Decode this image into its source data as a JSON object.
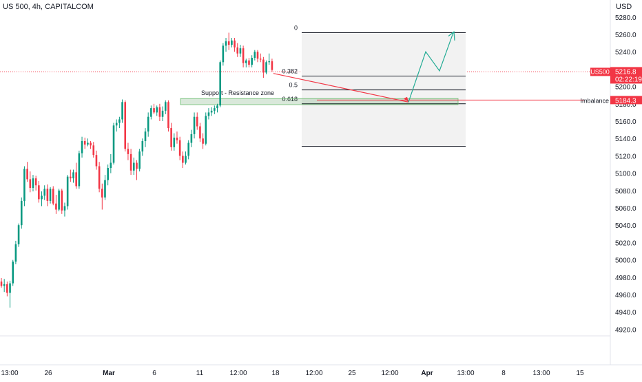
{
  "header": {
    "symbol_title": "US 500, 4h, CAPITALCOM",
    "currency": "USD"
  },
  "chart_data": {
    "type": "candlestick",
    "title": "US 500, 4h, CAPITALCOM",
    "ylim": [
      4910,
      5290
    ],
    "y_ticks": [
      4920,
      4940,
      4960,
      4980,
      5000,
      5020,
      5040,
      5060,
      5080,
      5100,
      5120,
      5140,
      5160,
      5180,
      5200,
      5220,
      5240,
      5260,
      5280
    ],
    "y_tick_labels": [
      "4920.0",
      "4940.0",
      "4960.0",
      "4980.0",
      "5000.0",
      "5020.0",
      "5040.0",
      "5060.0",
      "5080.0",
      "5100.0",
      "5120.0",
      "5140.0",
      "5160.0",
      "5180.0",
      "5200.0",
      "5220.0",
      "5240.0",
      "5260.0",
      "5280.0"
    ],
    "x_tick_labels": [
      "13:00",
      "26",
      "Mar",
      "6",
      "11",
      "12:00",
      "18",
      "12:00",
      "25",
      "12:00",
      "Apr",
      "13:00",
      "8",
      "13:00",
      "15"
    ],
    "candles": [
      [
        4975,
        4979,
        4968,
        4970
      ],
      [
        4970,
        4978,
        4963,
        4972
      ],
      [
        4972,
        4975,
        4958,
        4962
      ],
      [
        4962,
        4976,
        4945,
        4973
      ],
      [
        4973,
        5000,
        4970,
        4998
      ],
      [
        4998,
        5022,
        4995,
        5018
      ],
      [
        5018,
        5042,
        5015,
        5040
      ],
      [
        5040,
        5072,
        5036,
        5068
      ],
      [
        5068,
        5108,
        5062,
        5105
      ],
      [
        5105,
        5113,
        5090,
        5093
      ],
      [
        5093,
        5102,
        5078,
        5083
      ],
      [
        5083,
        5098,
        5079,
        5094
      ],
      [
        5094,
        5097,
        5080,
        5086
      ],
      [
        5086,
        5091,
        5066,
        5070
      ],
      [
        5070,
        5079,
        5062,
        5074
      ],
      [
        5074,
        5086,
        5069,
        5082
      ],
      [
        5082,
        5087,
        5062,
        5068
      ],
      [
        5068,
        5084,
        5065,
        5082
      ],
      [
        5082,
        5085,
        5063,
        5065
      ],
      [
        5065,
        5075,
        5053,
        5058
      ],
      [
        5058,
        5082,
        5056,
        5080
      ],
      [
        5080,
        5082,
        5053,
        5057
      ],
      [
        5057,
        5066,
        5050,
        5062
      ],
      [
        5062,
        5098,
        5058,
        5096
      ],
      [
        5096,
        5104,
        5090,
        5094
      ],
      [
        5094,
        5104,
        5089,
        5101
      ],
      [
        5101,
        5112,
        5082,
        5085
      ],
      [
        5085,
        5126,
        5082,
        5123
      ],
      [
        5123,
        5142,
        5118,
        5137
      ],
      [
        5137,
        5141,
        5128,
        5133
      ],
      [
        5133,
        5140,
        5131,
        5135
      ],
      [
        5135,
        5137,
        5128,
        5132
      ],
      [
        5132,
        5136,
        5118,
        5121
      ],
      [
        5121,
        5126,
        5104,
        5108
      ],
      [
        5108,
        5113,
        5078,
        5082
      ],
      [
        5082,
        5088,
        5058,
        5072
      ],
      [
        5072,
        5098,
        5069,
        5092
      ],
      [
        5092,
        5110,
        5086,
        5106
      ],
      [
        5106,
        5122,
        5100,
        5112
      ],
      [
        5112,
        5158,
        5110,
        5155
      ],
      [
        5155,
        5162,
        5148,
        5158
      ],
      [
        5158,
        5165,
        5152,
        5162
      ],
      [
        5162,
        5185,
        5158,
        5182
      ],
      [
        5182,
        5184,
        5125,
        5128
      ],
      [
        5128,
        5135,
        5115,
        5122
      ],
      [
        5122,
        5128,
        5098,
        5103
      ],
      [
        5103,
        5118,
        5098,
        5112
      ],
      [
        5112,
        5115,
        5092,
        5105
      ],
      [
        5105,
        5128,
        5102,
        5125
      ],
      [
        5125,
        5140,
        5120,
        5137
      ],
      [
        5137,
        5152,
        5130,
        5148
      ],
      [
        5148,
        5170,
        5142,
        5165
      ],
      [
        5165,
        5178,
        5162,
        5175
      ],
      [
        5175,
        5180,
        5168,
        5170
      ],
      [
        5170,
        5178,
        5166,
        5176
      ],
      [
        5176,
        5180,
        5160,
        5165
      ],
      [
        5165,
        5177,
        5160,
        5172
      ],
      [
        5172,
        5184,
        5168,
        5182
      ],
      [
        5182,
        5184,
        5148,
        5152
      ],
      [
        5152,
        5158,
        5126,
        5130
      ],
      [
        5130,
        5146,
        5126,
        5141
      ],
      [
        5141,
        5148,
        5134,
        5138
      ],
      [
        5138,
        5142,
        5115,
        5120
      ],
      [
        5120,
        5125,
        5106,
        5112
      ],
      [
        5112,
        5125,
        5110,
        5120
      ],
      [
        5120,
        5138,
        5116,
        5135
      ],
      [
        5135,
        5150,
        5130,
        5145
      ],
      [
        5145,
        5170,
        5140,
        5165
      ],
      [
        5165,
        5170,
        5150,
        5154
      ],
      [
        5154,
        5158,
        5136,
        5140
      ],
      [
        5140,
        5146,
        5128,
        5134
      ],
      [
        5134,
        5170,
        5132,
        5166
      ],
      [
        5166,
        5175,
        5162,
        5170
      ],
      [
        5170,
        5176,
        5166,
        5172
      ],
      [
        5172,
        5178,
        5168,
        5175
      ],
      [
        5175,
        5180,
        5170,
        5178
      ],
      [
        5178,
        5230,
        5176,
        5228
      ],
      [
        5228,
        5250,
        5224,
        5247
      ],
      [
        5247,
        5256,
        5240,
        5252
      ],
      [
        5252,
        5262,
        5242,
        5248
      ],
      [
        5248,
        5256,
        5245,
        5253
      ],
      [
        5253,
        5256,
        5240,
        5245
      ],
      [
        5245,
        5250,
        5234,
        5238
      ],
      [
        5238,
        5248,
        5234,
        5244
      ],
      [
        5244,
        5247,
        5222,
        5227
      ],
      [
        5227,
        5232,
        5222,
        5230
      ],
      [
        5230,
        5233,
        5222,
        5225
      ],
      [
        5225,
        5236,
        5222,
        5233
      ],
      [
        5233,
        5242,
        5230,
        5240
      ],
      [
        5240,
        5242,
        5228,
        5232
      ],
      [
        5232,
        5238,
        5228,
        5231
      ],
      [
        5231,
        5234,
        5210,
        5216
      ],
      [
        5216,
        5230,
        5214,
        5228
      ],
      [
        5228,
        5238,
        5225,
        5229
      ],
      [
        5229,
        5232,
        5217,
        5219
      ]
    ],
    "last_price": {
      "symbol": "US500",
      "price": "5216.8",
      "countdown": "02:22:19",
      "value": 5216.8
    },
    "imbalance": {
      "label": "Imbalance",
      "price": "5184.3",
      "value": 5184.3
    },
    "zone": {
      "label": "Support - Resistance zone",
      "low": 5179,
      "high": 5186
    },
    "fib_levels": [
      {
        "label": "0",
        "value": 5262
      },
      {
        "label": "0.382",
        "value": 5212
      },
      {
        "label": "0.5",
        "value": 5196
      },
      {
        "label": "0.618",
        "value": 5180
      },
      {
        "value": 5131
      }
    ],
    "colors": {
      "up": "#089981",
      "down": "#f23645",
      "zone": "#2e7d32",
      "projection_up": "#22ab94",
      "projection_down": "#f23645"
    }
  }
}
